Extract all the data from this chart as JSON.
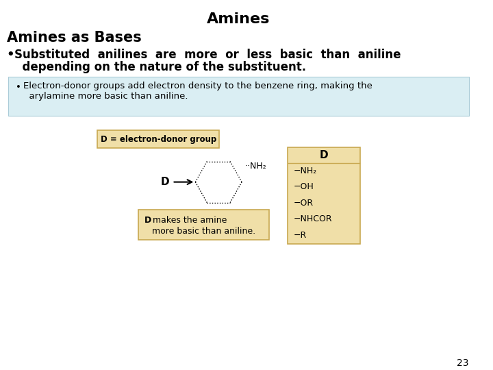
{
  "title": "Amines",
  "title_fontsize": 16,
  "title_fontweight": "bold",
  "subtitle": "Amines as Bases",
  "subtitle_fontsize": 15,
  "subtitle_fontweight": "bold",
  "bullet_main_line1": "Substituted  anilines  are  more  or  less  basic  than  aniline",
  "bullet_main_line2": "  depending on the nature of the substituent.",
  "bullet_main_fontsize": 12,
  "bullet_main_fontweight": "bold",
  "box_bg_color": "#daeef3",
  "box_border_color": "#aaccd8",
  "bullet_sub_line1": "Electron-donor groups add electron density to the benzene ring, making the",
  "bullet_sub_line2": "  arylamine more basic than aniline.",
  "bullet_sub_fontsize": 9.5,
  "label_box_color": "#f0dfa8",
  "label_box_border": "#c8a850",
  "donor_label": "D = electron-donor group",
  "d_makes_line1": "D makes the amine",
  "d_makes_line2": "more basic than aniline.",
  "d_table_title": "D",
  "d_table_items": [
    "−NH₂",
    "−OH",
    "−OR",
    "−NHCOR",
    "−R"
  ],
  "nh2_label": "··NH₂",
  "d_arrow_label": "D",
  "page_number": "23",
  "background_color": "#ffffff"
}
